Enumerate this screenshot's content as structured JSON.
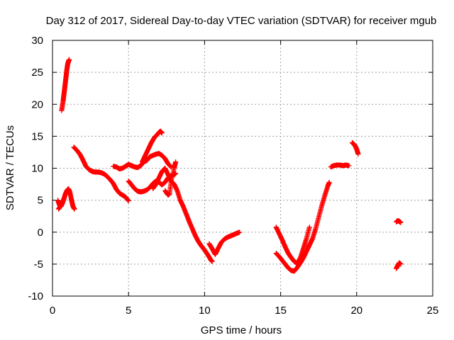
{
  "chart_data": {
    "type": "scatter",
    "title": "Day 312 of 2017, Sidereal Day-to-day VTEC variation (SDTVAR) for receiver mgub",
    "xlabel": "GPS time / hours",
    "ylabel": "SDTVAR / TECUs",
    "xlim": [
      0,
      25
    ],
    "ylim": [
      -10,
      30
    ],
    "x_ticks": [
      "0",
      "5",
      "10",
      "15",
      "20",
      "25"
    ],
    "y_ticks": [
      "-10",
      "-5",
      "0",
      "5",
      "10",
      "15",
      "20",
      "25",
      "30"
    ],
    "grid": true,
    "legend": "none",
    "marker": "plus",
    "color": "#ff0000",
    "series": [
      {
        "segments": [
          {
            "x": [
              0.6,
              0.7,
              0.75,
              0.8,
              0.85,
              0.9,
              0.95,
              1.0,
              1.05,
              1.1
            ],
            "y": [
              19.0,
              20.5,
              21.5,
              22.5,
              23.5,
              24.5,
              25.5,
              26.3,
              26.7,
              27.0
            ]
          },
          {
            "x": [
              0.35,
              0.45,
              0.55,
              0.65,
              0.75,
              0.85,
              0.95,
              1.05,
              1.15,
              1.25,
              1.35,
              1.45
            ],
            "y": [
              5.0,
              4.3,
              4.0,
              4.5,
              5.2,
              6.0,
              6.5,
              6.8,
              6.2,
              5.0,
              4.0,
              3.6
            ]
          },
          {
            "x": [
              0.4,
              0.5,
              0.6
            ],
            "y": [
              3.6,
              4.0,
              4.6
            ]
          },
          {
            "x": [
              1.4,
              1.6,
              1.8,
              2.0,
              2.2,
              2.4,
              2.6,
              2.8,
              3.0,
              3.2,
              3.4,
              3.6,
              3.8,
              4.0,
              4.2,
              4.4,
              4.6,
              4.8,
              5.0
            ],
            "y": [
              13.3,
              12.8,
              12.2,
              11.3,
              10.3,
              9.8,
              9.5,
              9.4,
              9.4,
              9.3,
              9.1,
              8.7,
              8.2,
              7.6,
              6.7,
              6.1,
              5.8,
              5.5,
              4.9
            ]
          },
          {
            "x": [
              4.0,
              4.2,
              4.4,
              4.6,
              4.8,
              5.0,
              5.2,
              5.4,
              5.6,
              5.8,
              6.0,
              6.2,
              6.4,
              6.6,
              6.8,
              7.0,
              7.2,
              7.4,
              7.6,
              7.8
            ],
            "y": [
              10.3,
              10.2,
              9.9,
              10.0,
              10.3,
              10.6,
              10.4,
              10.2,
              10.1,
              10.4,
              11.0,
              11.2,
              11.8,
              12.0,
              12.2,
              12.3,
              12.0,
              11.5,
              10.7,
              10.2
            ]
          },
          {
            "x": [
              5.0,
              5.2,
              5.4,
              5.6,
              5.8,
              6.0,
              6.2,
              6.4,
              6.6,
              6.8,
              7.0,
              7.2,
              7.4,
              7.6,
              7.8,
              8.0,
              8.1
            ],
            "y": [
              8.0,
              7.4,
              6.8,
              6.4,
              6.3,
              6.4,
              6.6,
              7.0,
              7.6,
              8.0,
              7.8,
              7.4,
              7.8,
              8.5,
              8.8,
              9.0,
              9.2
            ]
          },
          {
            "x": [
              5.9,
              6.1,
              6.3,
              6.5,
              6.7,
              6.9,
              7.0,
              7.1,
              7.2
            ],
            "y": [
              11.0,
              12.0,
              13.0,
              14.0,
              14.8,
              15.3,
              15.6,
              15.8,
              15.5
            ]
          },
          {
            "x": [
              6.6,
              6.8,
              7.0,
              7.2,
              7.4,
              7.6,
              7.8,
              8.0,
              8.2,
              8.4,
              8.6,
              8.8,
              9.0,
              9.2,
              9.4,
              9.6,
              9.8,
              10.0,
              10.2,
              10.4,
              10.5
            ],
            "y": [
              6.8,
              7.5,
              8.5,
              9.5,
              10.0,
              9.0,
              8.0,
              7.5,
              6.5,
              5.0,
              4.0,
              2.8,
              1.6,
              0.5,
              -0.6,
              -1.5,
              -2.2,
              -2.8,
              -3.5,
              -4.3,
              -4.6
            ]
          },
          {
            "x": [
              7.4,
              7.6,
              7.7,
              7.8,
              8.0,
              8.1
            ],
            "y": [
              6.5,
              5.8,
              6.0,
              8.0,
              10.0,
              11.0
            ]
          },
          {
            "x": [
              10.3,
              10.5,
              10.7,
              10.9,
              11.1,
              11.3,
              11.5,
              11.7,
              11.9,
              12.1,
              12.3
            ],
            "y": [
              -1.8,
              -2.6,
              -3.5,
              -2.5,
              -1.6,
              -1.1,
              -0.8,
              -0.6,
              -0.4,
              -0.2,
              0.0
            ]
          },
          {
            "x": [
              14.7,
              14.9,
              15.1,
              15.3,
              15.5,
              15.7,
              15.9,
              16.1,
              16.3,
              16.5,
              16.7,
              16.9
            ],
            "y": [
              0.8,
              -0.2,
              -1.2,
              -2.3,
              -3.3,
              -4.0,
              -4.6,
              -4.9,
              -4.0,
              -2.5,
              -1.0,
              0.8
            ]
          },
          {
            "x": [
              14.7,
              14.9,
              15.1,
              15.3,
              15.5,
              15.7,
              15.9,
              16.1,
              16.3,
              16.5,
              16.7,
              16.9,
              17.1,
              17.3,
              17.5,
              17.7,
              17.9,
              18.1,
              18.2
            ],
            "y": [
              -3.3,
              -3.8,
              -4.4,
              -5.0,
              -5.6,
              -6.0,
              -6.1,
              -5.5,
              -4.8,
              -4.0,
              -3.0,
              -2.0,
              -1.0,
              0.5,
              2.3,
              4.1,
              5.7,
              7.2,
              7.8
            ]
          },
          {
            "x": [
              18.3,
              18.5,
              18.7,
              18.9,
              19.1,
              19.3,
              19.5
            ],
            "y": [
              10.2,
              10.4,
              10.5,
              10.5,
              10.4,
              10.5,
              10.4
            ]
          },
          {
            "x": [
              19.7,
              19.8,
              19.9,
              20.0,
              20.1
            ],
            "y": [
              14.0,
              13.8,
              13.5,
              13.0,
              12.2
            ]
          },
          {
            "x": [
              22.6,
              22.7,
              22.8,
              22.9
            ],
            "y": [
              1.6,
              1.8,
              1.7,
              1.5
            ]
          },
          {
            "x": [
              22.6,
              22.7,
              22.8,
              22.9
            ],
            "y": [
              -5.7,
              -5.2,
              -4.8,
              -5.0
            ]
          }
        ]
      }
    ]
  }
}
